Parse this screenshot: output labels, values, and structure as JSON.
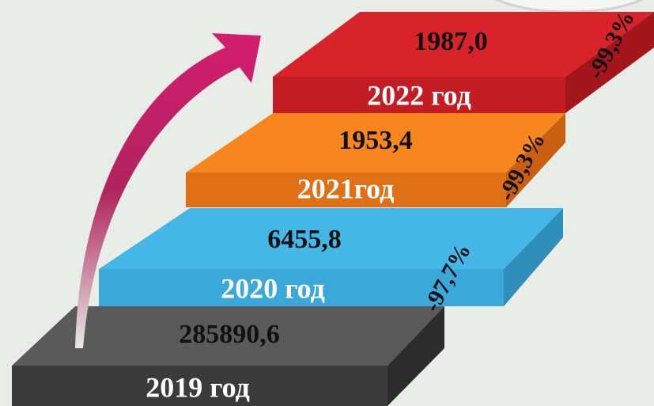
{
  "steps": [
    {
      "year": "2019 год",
      "value": "285890,6"
    },
    {
      "year": "2020 год",
      "value": "6455,8",
      "change": "-97,7%"
    },
    {
      "year": "2021год",
      "value": "1953,4",
      "change": "-99,3%"
    },
    {
      "year": "2022 год",
      "value": "1987,0",
      "change": "-99,3%"
    }
  ]
}
